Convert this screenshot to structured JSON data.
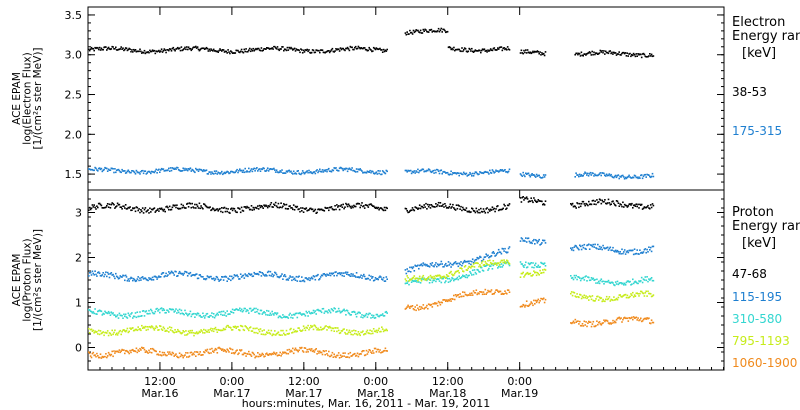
{
  "chart_data": [
    {
      "type": "scatter",
      "panel": "electron",
      "ylabel": [
        "ACE EPAM",
        "log(Electron Flux)",
        "[1/(cm²s ster MeV)]"
      ],
      "legend_title": [
        "Electron",
        "Energy ranges",
        "[keV]"
      ],
      "ylim": [
        1.3,
        3.6
      ],
      "yticks": [
        1.5,
        2.0,
        2.5,
        3.0,
        3.5
      ],
      "ytick_labels": [
        "1.5",
        "2.0",
        "2.5",
        "3.0",
        "3.5"
      ],
      "grid": false,
      "legend_position": "right",
      "series": [
        {
          "name": "38-53",
          "color": "#000000",
          "segments": [
            [
              0,
              2.08,
              3.07
            ],
            [
              2.2,
              2.5,
              3.3
            ],
            [
              2.5,
              2.93,
              3.08
            ],
            [
              3.0,
              3.18,
              3.03
            ],
            [
              3.38,
              3.93,
              3.02
            ]
          ]
        },
        {
          "name": "175-315",
          "color": "#1e7fd0",
          "segments": [
            [
              0,
              2.08,
              1.55
            ],
            [
              2.2,
              2.93,
              1.53
            ],
            [
              3.0,
              3.18,
              1.5
            ],
            [
              3.38,
              3.93,
              1.49
            ]
          ]
        }
      ]
    },
    {
      "type": "scatter",
      "panel": "proton",
      "ylabel": [
        "ACE EPAM",
        "log(Proton Flux)",
        "[1/(cm²s ster MeV)]"
      ],
      "legend_title": [
        "Proton",
        "Energy ranges",
        "[keV]"
      ],
      "ylim": [
        -0.5,
        3.5
      ],
      "yticks": [
        0,
        1,
        2,
        3
      ],
      "ytick_labels": [
        "0",
        "1",
        "2",
        "3"
      ],
      "grid": false,
      "legend_position": "right",
      "series": [
        {
          "name": "47-68",
          "color": "#000000",
          "segments": [
            [
              0,
              2.08,
              3.12
            ],
            [
              2.2,
              2.93,
              3.12
            ],
            [
              3.0,
              3.18,
              3.25
            ],
            [
              3.35,
              3.93,
              3.2
            ]
          ]
        },
        {
          "name": "115-195",
          "color": "#1e7fd0",
          "segments": [
            [
              0,
              2.08,
              1.6
            ],
            [
              2.2,
              2.93,
              1.7
            ],
            [
              3.0,
              3.18,
              2.4
            ],
            [
              3.35,
              3.93,
              2.2
            ]
          ]
        },
        {
          "name": "310-580",
          "color": "#33d6d0",
          "segments": [
            [
              0,
              2.08,
              0.78
            ],
            [
              2.2,
              2.93,
              1.4
            ],
            [
              3.0,
              3.18,
              1.9
            ],
            [
              3.35,
              3.93,
              1.5
            ]
          ]
        },
        {
          "name": "795-1193",
          "color": "#c6ec1a",
          "segments": [
            [
              0,
              2.08,
              0.4
            ],
            [
              2.2,
              2.93,
              1.5
            ],
            [
              3.0,
              3.18,
              1.7
            ],
            [
              3.35,
              3.93,
              1.15
            ]
          ]
        },
        {
          "name": "1060-1900",
          "color": "#f08a1d",
          "segments": [
            [
              0,
              2.08,
              -0.1
            ],
            [
              2.2,
              2.93,
              0.9
            ],
            [
              3.0,
              3.18,
              1.0
            ],
            [
              3.35,
              3.93,
              0.6
            ]
          ]
        }
      ]
    }
  ],
  "x_axis": {
    "range_days": [
      0,
      4.42
    ],
    "ticks": [
      {
        "day": 0.5,
        "time": "12:00",
        "date": "Mar.16"
      },
      {
        "day": 1.0,
        "time": "0:00",
        "date": "Mar.17"
      },
      {
        "day": 1.5,
        "time": "12:00",
        "date": "Mar.17"
      },
      {
        "day": 2.0,
        "time": "0:00",
        "date": "Mar.18"
      },
      {
        "day": 2.5,
        "time": "12:00",
        "date": "Mar.18"
      },
      {
        "day": 3.0,
        "time": "0:00",
        "date": "Mar.19"
      }
    ],
    "label": "hours:minutes, Mar. 16, 2011 - Mar. 19, 2011"
  }
}
